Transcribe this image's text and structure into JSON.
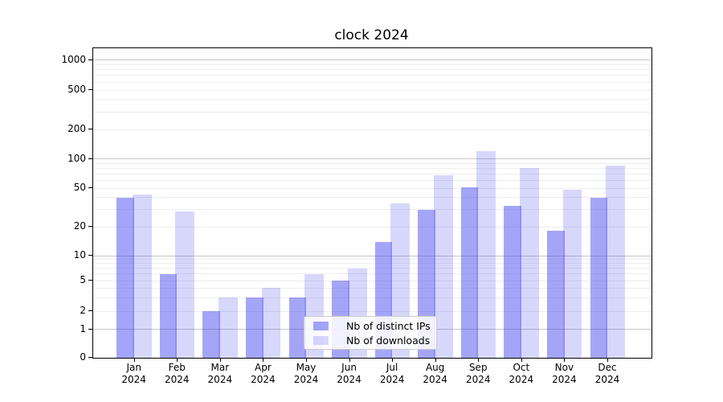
{
  "chart_data": {
    "type": "bar",
    "title": "clock 2024",
    "xlabel": "",
    "ylabel": "",
    "categories": [
      "Jan 2024",
      "Feb 2024",
      "Mar 2024",
      "Apr 2024",
      "May 2024",
      "Jun 2024",
      "Jul 2024",
      "Aug 2024",
      "Sep 2024",
      "Oct 2024",
      "Nov 2024",
      "Dec 2024"
    ],
    "series": [
      {
        "name": "Nb of distinct IPs",
        "values": [
          40,
          6,
          2,
          3,
          3,
          5,
          14,
          30,
          51,
          33,
          18,
          40
        ]
      },
      {
        "name": "Nb of downloads",
        "values": [
          43,
          29,
          3,
          4,
          6,
          7,
          35,
          68,
          120,
          80,
          48,
          85
        ]
      }
    ],
    "yscale": "log-like with 0 baseline",
    "ylim": [
      0,
      1150
    ],
    "yticks": [
      0,
      1,
      2,
      5,
      10,
      20,
      50,
      100,
      200,
      500,
      1000
    ],
    "ytick_labels": [
      "0",
      "1",
      "2",
      "5",
      "10",
      "20",
      "50",
      "100",
      "200",
      "500",
      "1000"
    ],
    "major_gridlines": [
      1,
      10,
      100,
      1000
    ],
    "minor_gridlines": [
      2,
      3,
      4,
      5,
      6,
      7,
      8,
      9,
      20,
      30,
      40,
      50,
      60,
      70,
      80,
      90,
      200,
      300,
      400,
      500,
      600,
      700,
      800,
      900
    ],
    "grid": true,
    "legend_position": "lower center"
  },
  "legend": {
    "items": [
      {
        "label": "Nb of distinct IPs",
        "color_key": "bar_ips"
      },
      {
        "label": "Nb of downloads",
        "color_key": "bar_downloads"
      }
    ]
  },
  "colors": {
    "bar_ips": "rgba(56,56,240,0.45)",
    "bar_downloads": "rgba(56,56,240,0.20)",
    "grid_major": "#c8c8c8",
    "grid_light": "#ededed",
    "axis": "#000000",
    "text": "#000000",
    "legend_border": "#cccccc",
    "legend_bg": "rgba(255,255,255,0.85)"
  }
}
